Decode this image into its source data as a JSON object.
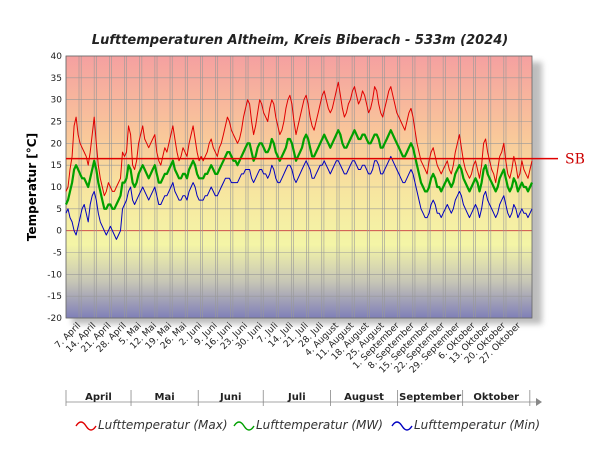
{
  "chart_data": {
    "type": "line",
    "title": "Lufttemperaturen Altheim, Kreis Biberach - 533m (2024)",
    "ylabel": "Temperatur [°C]",
    "ylim": [
      -20,
      40
    ],
    "yticks": [
      "40",
      "35",
      "30",
      "25",
      "20",
      "15",
      "10",
      "5",
      "0",
      "-5",
      "-10",
      "-15",
      "-20"
    ],
    "x_start": "2024-04-01",
    "x_end": "2024-11-02",
    "xtick_labels": [
      "7. April",
      "14. April",
      "21. April",
      "28. April",
      "5. Mai",
      "12. Mai",
      "19. Mai",
      "26. Mai",
      "2. Juni",
      "9. Juni",
      "16. Juni",
      "23. Juni",
      "30. Juni",
      "7. Juli",
      "14. Juli",
      "21. Juli",
      "28. Juli",
      "4. August",
      "11. August",
      "18. August",
      "25. August",
      "1. September",
      "8. September",
      "15. September",
      "22. September",
      "29. September",
      "6. Oktober",
      "13. Oktober",
      "20. Oktober",
      "27. Oktober"
    ],
    "months": [
      "April",
      "Mai",
      "Juni",
      "Juli",
      "August",
      "September",
      "Oktober"
    ],
    "reference_line": {
      "label": "SB",
      "value": 16.5,
      "color": "#e00000"
    },
    "grid": true,
    "legend_position": "bottom",
    "series": [
      {
        "name": "Lufttemperatur (Max)",
        "color": "#e00000",
        "values": [
          9,
          10,
          14,
          17,
          24,
          26,
          22,
          20,
          19,
          18,
          17,
          15,
          18,
          22,
          26,
          20,
          15,
          12,
          10,
          8,
          9,
          11,
          10,
          9,
          9,
          10,
          11,
          12,
          18,
          17,
          18,
          24,
          22,
          15,
          14,
          16,
          20,
          22,
          24,
          21,
          20,
          19,
          20,
          21,
          22,
          18,
          16,
          15,
          17,
          19,
          18,
          20,
          22,
          24,
          21,
          18,
          16,
          17,
          19,
          18,
          17,
          20,
          22,
          24,
          21,
          18,
          16,
          17,
          16,
          17,
          18,
          20,
          21,
          19,
          18,
          17,
          19,
          20,
          22,
          24,
          26,
          25,
          23,
          22,
          21,
          20,
          21,
          23,
          26,
          28,
          30,
          29,
          25,
          22,
          24,
          27,
          30,
          29,
          27,
          26,
          25,
          28,
          30,
          29,
          26,
          24,
          22,
          23,
          25,
          28,
          30,
          31,
          29,
          25,
          22,
          24,
          26,
          28,
          30,
          31,
          29,
          26,
          24,
          23,
          25,
          27,
          29,
          31,
          32,
          30,
          28,
          27,
          28,
          30,
          32,
          34,
          31,
          28,
          26,
          27,
          29,
          30,
          32,
          33,
          31,
          29,
          30,
          32,
          31,
          29,
          27,
          28,
          30,
          33,
          32,
          29,
          27,
          26,
          28,
          30,
          32,
          33,
          31,
          29,
          27,
          26,
          25,
          24,
          23,
          25,
          27,
          28,
          26,
          23,
          20,
          18,
          16,
          15,
          14,
          13,
          16,
          18,
          19,
          17,
          15,
          14,
          13,
          14,
          15,
          16,
          14,
          13,
          15,
          18,
          20,
          22,
          19,
          16,
          14,
          13,
          12,
          13,
          15,
          16,
          14,
          12,
          15,
          20,
          21,
          18,
          16,
          14,
          13,
          11,
          14,
          17,
          18,
          20,
          16,
          13,
          12,
          14,
          17,
          15,
          12,
          13,
          16,
          14,
          13,
          12,
          14,
          16
        ]
      },
      {
        "name": "Lufttemperatur (MW)",
        "color": "#00a000",
        "values": [
          6,
          7,
          9,
          11,
          14,
          15,
          14,
          13,
          12,
          12,
          11,
          10,
          12,
          14,
          16,
          14,
          11,
          9,
          7,
          5,
          5,
          6,
          6,
          5,
          5,
          6,
          7,
          8,
          11,
          11,
          12,
          15,
          14,
          11,
          10,
          11,
          13,
          14,
          15,
          14,
          13,
          12,
          13,
          14,
          15,
          13,
          11,
          11,
          12,
          13,
          13,
          14,
          15,
          16,
          14,
          13,
          12,
          12,
          13,
          13,
          12,
          14,
          15,
          16,
          15,
          13,
          12,
          12,
          12,
          13,
          13,
          14,
          15,
          14,
          13,
          13,
          14,
          15,
          16,
          17,
          18,
          18,
          17,
          16,
          16,
          15,
          16,
          17,
          18,
          19,
          20,
          20,
          18,
          16,
          17,
          19,
          20,
          20,
          19,
          18,
          18,
          19,
          21,
          20,
          18,
          17,
          16,
          17,
          18,
          19,
          21,
          21,
          20,
          18,
          16,
          17,
          18,
          19,
          21,
          22,
          21,
          19,
          17,
          17,
          18,
          19,
          20,
          21,
          22,
          21,
          20,
          19,
          20,
          21,
          22,
          23,
          22,
          20,
          19,
          19,
          20,
          21,
          22,
          23,
          22,
          21,
          21,
          22,
          22,
          21,
          20,
          20,
          21,
          22,
          22,
          21,
          19,
          19,
          20,
          21,
          22,
          23,
          22,
          21,
          20,
          19,
          18,
          17,
          17,
          18,
          19,
          20,
          19,
          17,
          15,
          13,
          11,
          10,
          9,
          9,
          10,
          12,
          13,
          12,
          10,
          10,
          9,
          10,
          11,
          12,
          11,
          10,
          11,
          13,
          14,
          15,
          14,
          12,
          11,
          10,
          9,
          10,
          11,
          12,
          11,
          9,
          11,
          14,
          15,
          13,
          12,
          11,
          10,
          9,
          10,
          12,
          13,
          14,
          12,
          10,
          9,
          10,
          12,
          11,
          9,
          10,
          11,
          10,
          10,
          9,
          10,
          11
        ]
      },
      {
        "name": "Lufttemperatur (Min)",
        "color": "#0000c0",
        "values": [
          4,
          5,
          3,
          2,
          0,
          -1,
          1,
          3,
          5,
          6,
          4,
          2,
          6,
          8,
          9,
          7,
          4,
          2,
          1,
          0,
          -1,
          0,
          1,
          0,
          -1,
          -2,
          -1,
          0,
          5,
          6,
          7,
          9,
          10,
          7,
          6,
          7,
          8,
          9,
          10,
          9,
          8,
          7,
          8,
          9,
          10,
          8,
          6,
          6,
          7,
          8,
          8,
          9,
          10,
          11,
          9,
          8,
          7,
          7,
          8,
          8,
          7,
          9,
          10,
          11,
          10,
          8,
          7,
          7,
          7,
          8,
          8,
          9,
          10,
          9,
          8,
          8,
          9,
          10,
          11,
          12,
          12,
          12,
          11,
          11,
          11,
          11,
          12,
          13,
          13,
          14,
          14,
          14,
          12,
          11,
          12,
          13,
          14,
          14,
          13,
          13,
          12,
          13,
          15,
          14,
          12,
          11,
          11,
          12,
          13,
          14,
          15,
          15,
          14,
          12,
          11,
          12,
          13,
          14,
          15,
          16,
          15,
          14,
          12,
          12,
          13,
          14,
          15,
          15,
          16,
          15,
          14,
          13,
          14,
          15,
          16,
          16,
          15,
          14,
          13,
          13,
          14,
          15,
          16,
          16,
          15,
          14,
          14,
          15,
          15,
          14,
          13,
          13,
          14,
          16,
          16,
          15,
          13,
          13,
          14,
          15,
          16,
          17,
          16,
          15,
          14,
          13,
          12,
          11,
          11,
          12,
          13,
          14,
          13,
          11,
          9,
          7,
          5,
          4,
          3,
          3,
          4,
          6,
          7,
          6,
          4,
          4,
          3,
          4,
          5,
          6,
          5,
          4,
          5,
          7,
          8,
          9,
          8,
          6,
          5,
          4,
          3,
          4,
          5,
          6,
          5,
          3,
          5,
          8,
          9,
          7,
          6,
          5,
          4,
          3,
          4,
          6,
          7,
          8,
          6,
          4,
          3,
          4,
          6,
          5,
          3,
          4,
          5,
          4,
          4,
          3,
          4,
          5
        ]
      }
    ]
  }
}
